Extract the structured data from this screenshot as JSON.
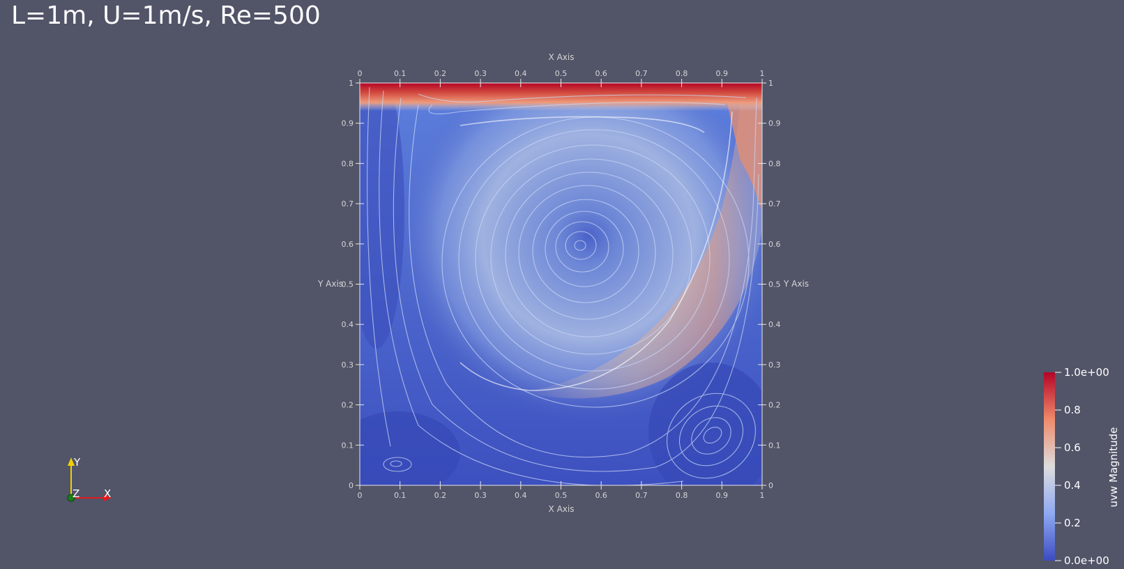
{
  "title": "L=1m, U=1m/s, Re=500",
  "colors": {
    "background": "#525468",
    "low": "#3b4cc0",
    "mid": "#dddddd",
    "high": "#b40426"
  },
  "plot": {
    "x_axis_title_top": "X Axis",
    "x_axis_title_bottom": "X Axis",
    "y_axis_title_left": "Y Axis",
    "y_axis_title_right": "Y Axis",
    "ticks": [
      "0",
      "0.1",
      "0.2",
      "0.3",
      "0.4",
      "0.5",
      "0.6",
      "0.7",
      "0.8",
      "0.9",
      "1"
    ]
  },
  "colorbar": {
    "title": "uvw Magnitude",
    "labels": [
      "1.0e+00",
      "0.8",
      "0.6",
      "0.4",
      "0.2",
      "0.0e+00"
    ]
  },
  "orientation_axes": {
    "y_label": "Y",
    "z_label": "Z",
    "x_label": "X",
    "x_color": "#e41a1c",
    "y_color": "#f0d000",
    "z_color": "#1a7f1a"
  }
}
